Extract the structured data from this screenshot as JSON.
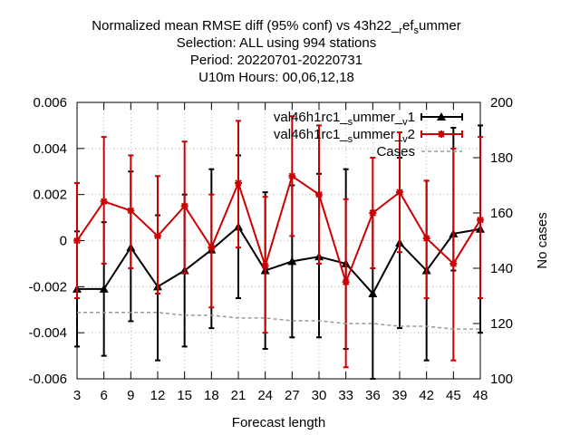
{
  "chart_data": {
    "type": "line",
    "title_lines": [
      "Normalized mean RMSE diff (95% conf) vs 43h22_ref_summer",
      "Selection: ALL using   994 stations",
      "Period: 20220701-20220731",
      "U10m   Hours:  00,06,12,18"
    ],
    "title_subscripts": [
      "r",
      "s"
    ],
    "xlabel": "Forecast length",
    "ylabel_right": "No cases",
    "x": [
      3,
      6,
      9,
      12,
      15,
      18,
      21,
      24,
      27,
      30,
      33,
      36,
      39,
      42,
      45,
      48
    ],
    "xlim": [
      3,
      48
    ],
    "ylim": [
      -0.006,
      0.006
    ],
    "y_ticks": [
      -0.006,
      -0.004,
      -0.002,
      0,
      0.002,
      0.004,
      0.006
    ],
    "y_tick_labels": [
      "-0.006",
      "-0.004",
      "-0.002",
      "0",
      "0.002",
      "0.004",
      "0.006"
    ],
    "y2lim": [
      100,
      200
    ],
    "y2_ticks": [
      100,
      120,
      140,
      160,
      180,
      200
    ],
    "x_tick_labels": [
      "3",
      "6",
      "9",
      "12",
      "15",
      "18",
      "21",
      "24",
      "27",
      "30",
      "33",
      "36",
      "39",
      "42",
      "45",
      "48"
    ],
    "legend_position": "top-right",
    "grid": true,
    "series": [
      {
        "name": "val46h1rc1_summer_v1",
        "legend_parts": [
          "val46h1rc1",
          "s",
          "ummer",
          "v",
          "1"
        ],
        "color": "#000000",
        "marker": "triangle",
        "values": [
          -0.0021,
          -0.0021,
          -0.0003,
          -0.002,
          -0.0013,
          -0.0004,
          0.0006,
          -0.0013,
          -0.0009,
          -0.0007,
          -0.001,
          -0.0023,
          -0.0001,
          -0.0013,
          0.0003,
          0.0005
        ],
        "err_low": [
          -0.0046,
          -0.005,
          -0.0035,
          -0.0052,
          -0.0046,
          -0.0038,
          -0.0025,
          -0.0047,
          -0.0042,
          -0.0042,
          -0.0047,
          -0.006,
          -0.0038,
          -0.0052,
          -0.0013,
          -0.004
        ],
        "err_high": [
          0.0004,
          0.0008,
          0.003,
          0.0011,
          0.002,
          0.0031,
          0.0037,
          0.0021,
          0.0024,
          0.0029,
          0.0031,
          0.0013,
          0.0036,
          0.0026,
          0.0049,
          0.005
        ]
      },
      {
        "name": "val46h1rc1_summer_v2",
        "legend_parts": [
          "val46h1rc1",
          "s",
          "ummer",
          "v",
          "2"
        ],
        "color": "#cc0000",
        "marker": "star",
        "values": [
          0.0,
          0.0017,
          0.0013,
          0.0002,
          0.0015,
          -0.0003,
          0.0025,
          -0.0011,
          0.0028,
          0.002,
          -0.0018,
          0.0012,
          0.0021,
          0.0001,
          -0.001,
          0.0009
        ],
        "err_low": [
          -0.0025,
          -0.001,
          -0.0012,
          -0.0023,
          -0.0014,
          -0.0029,
          -0.0003,
          -0.004,
          0.0002,
          -0.001,
          -0.0055,
          -0.0012,
          -0.0005,
          -0.0025,
          -0.0052,
          -0.0025
        ],
        "err_high": [
          0.0025,
          0.0045,
          0.0037,
          0.0028,
          0.0043,
          0.002,
          0.0052,
          0.0019,
          0.0054,
          0.005,
          0.0018,
          0.0036,
          0.0047,
          0.0026,
          0.004,
          0.0045
        ]
      },
      {
        "name": "Cases",
        "color": "#999999",
        "axis": "right",
        "dashed": true,
        "values": [
          124,
          124,
          124,
          124,
          123,
          123,
          122,
          122,
          121,
          121,
          120,
          120,
          119,
          119,
          118,
          118
        ]
      }
    ]
  }
}
